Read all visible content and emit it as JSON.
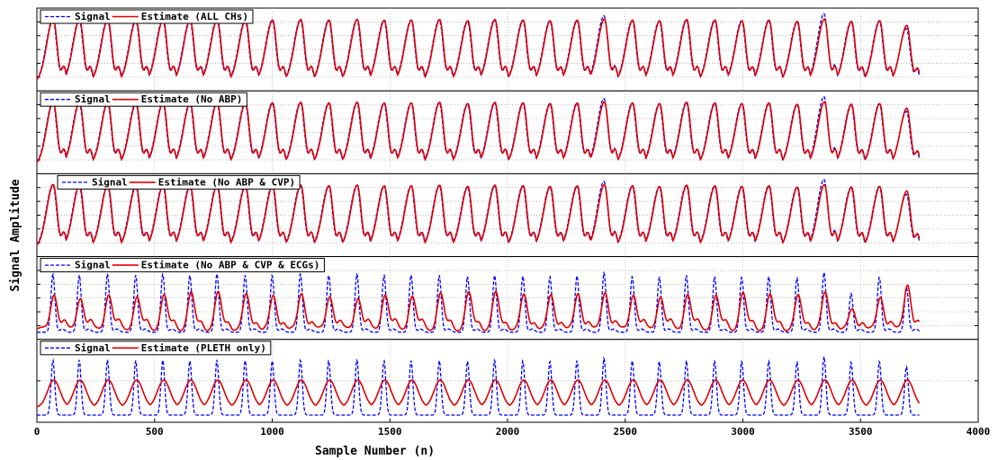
{
  "chart_data": {
    "type": "line",
    "xlabel": "Sample Number (n)",
    "ylabel": "Signal Amplitude",
    "xlim": [
      0,
      4000
    ],
    "xticks": [
      0,
      500,
      1000,
      1500,
      2000,
      2500,
      3000,
      3500,
      4000
    ],
    "grid": true,
    "n_samples": 3750,
    "beat_positions": [
      68,
      180,
      300,
      420,
      535,
      650,
      765,
      885,
      1000,
      1120,
      1240,
      1360,
      1475,
      1590,
      1710,
      1830,
      1945,
      2065,
      2180,
      2295,
      2410,
      2530,
      2645,
      2760,
      2880,
      2995,
      3110,
      3230,
      3345,
      3460,
      3580,
      3695
    ],
    "panels": [
      {
        "legend": {
          "signal": "Signal",
          "estimate": "Estimate (ALL CHs)"
        },
        "estimate_style": "accurate",
        "signal_peaks": [
          1.0,
          0.99,
          0.99,
          0.98,
          0.99,
          0.98,
          0.99,
          0.98,
          0.98,
          0.99,
          0.98,
          0.99,
          0.98,
          0.98,
          0.99,
          0.97,
          0.99,
          0.98,
          0.97,
          0.98,
          1.05,
          0.98,
          0.97,
          0.99,
          0.98,
          0.97,
          0.98,
          0.96,
          1.08,
          0.96,
          0.97,
          0.85
        ],
        "estimate_peaks": [
          1.0,
          0.99,
          0.99,
          0.98,
          0.99,
          0.98,
          0.99,
          0.98,
          0.98,
          0.99,
          0.98,
          0.99,
          0.98,
          0.98,
          0.99,
          0.97,
          0.99,
          0.98,
          0.97,
          0.98,
          1.0,
          0.98,
          0.97,
          0.99,
          0.98,
          0.97,
          0.98,
          0.96,
          1.0,
          0.96,
          0.97,
          0.9
        ]
      },
      {
        "legend": {
          "signal": "Signal",
          "estimate": "Estimate (No ABP)"
        },
        "estimate_style": "accurate",
        "signal_peaks": [
          1.0,
          0.99,
          0.99,
          0.98,
          0.99,
          0.98,
          0.99,
          0.98,
          0.98,
          0.99,
          0.98,
          0.99,
          0.98,
          0.98,
          0.99,
          0.97,
          0.99,
          0.98,
          0.97,
          0.98,
          1.05,
          0.98,
          0.97,
          0.99,
          0.98,
          0.97,
          0.98,
          0.96,
          1.08,
          0.96,
          0.97,
          0.85
        ],
        "estimate_peaks": [
          1.0,
          0.99,
          0.99,
          0.98,
          0.99,
          0.98,
          0.99,
          0.98,
          0.98,
          0.99,
          0.98,
          0.99,
          0.98,
          0.98,
          0.99,
          0.97,
          0.99,
          0.98,
          0.97,
          0.98,
          1.0,
          0.98,
          0.97,
          0.99,
          0.98,
          0.97,
          0.98,
          0.96,
          1.0,
          0.96,
          0.97,
          0.9
        ]
      },
      {
        "legend": {
          "signal": "Signal",
          "estimate": "Estimate (No ABP & CVP)"
        },
        "estimate_style": "accurate",
        "signal_peaks": [
          1.0,
          0.99,
          0.99,
          0.98,
          0.99,
          0.98,
          0.99,
          0.98,
          0.98,
          0.99,
          0.98,
          0.99,
          0.98,
          0.98,
          0.99,
          0.97,
          0.99,
          0.98,
          0.97,
          0.98,
          1.05,
          0.98,
          0.97,
          0.99,
          0.98,
          0.97,
          0.98,
          0.96,
          1.08,
          0.96,
          0.97,
          0.85
        ],
        "estimate_peaks": [
          1.0,
          0.99,
          0.99,
          0.98,
          0.99,
          0.98,
          0.99,
          0.98,
          0.98,
          0.99,
          0.98,
          0.99,
          0.98,
          0.98,
          0.99,
          0.97,
          0.99,
          0.98,
          0.97,
          0.98,
          1.0,
          0.98,
          0.97,
          0.99,
          0.98,
          0.97,
          0.98,
          0.96,
          1.0,
          0.96,
          0.97,
          0.9
        ]
      },
      {
        "legend": {
          "signal": "Signal",
          "estimate": "Estimate (No ABP & CVP & ECGs)"
        },
        "estimate_style": "degraded",
        "signal_peaks": [
          0.9,
          0.88,
          0.9,
          0.88,
          0.9,
          0.88,
          0.9,
          0.88,
          0.88,
          0.9,
          0.88,
          0.9,
          0.88,
          0.88,
          0.88,
          0.86,
          0.88,
          0.87,
          0.86,
          0.87,
          0.92,
          0.86,
          0.85,
          0.88,
          0.86,
          0.85,
          0.86,
          0.84,
          0.92,
          0.6,
          0.85,
          0.7
        ],
        "estimate_peaks": [
          0.55,
          0.5,
          0.55,
          0.5,
          0.52,
          0.55,
          0.55,
          0.52,
          0.5,
          0.55,
          0.52,
          0.5,
          0.55,
          0.52,
          0.55,
          0.55,
          0.55,
          0.52,
          0.52,
          0.55,
          0.58,
          0.55,
          0.52,
          0.55,
          0.52,
          0.55,
          0.52,
          0.5,
          0.55,
          0.3,
          0.5,
          0.7
        ]
      },
      {
        "legend": {
          "signal": "Signal",
          "estimate": "Estimate (PLETH only)"
        },
        "estimate_style": "smooth",
        "signal_peaks": [
          0.85,
          0.85,
          0.85,
          0.84,
          0.85,
          0.84,
          0.85,
          0.84,
          0.84,
          0.85,
          0.84,
          0.85,
          0.84,
          0.84,
          0.84,
          0.83,
          0.85,
          0.84,
          0.83,
          0.84,
          0.88,
          0.84,
          0.83,
          0.84,
          0.84,
          0.83,
          0.84,
          0.82,
          0.9,
          0.82,
          0.83,
          0.75
        ],
        "estimate_peaks": [
          0.42,
          0.42,
          0.42,
          0.42,
          0.42,
          0.42,
          0.42,
          0.42,
          0.42,
          0.42,
          0.42,
          0.42,
          0.42,
          0.42,
          0.42,
          0.42,
          0.42,
          0.42,
          0.42,
          0.42,
          0.42,
          0.42,
          0.42,
          0.42,
          0.42,
          0.42,
          0.42,
          0.42,
          0.42,
          0.42,
          0.42,
          0.42
        ]
      }
    ],
    "colors": {
      "signal": "#0000ff",
      "estimate": "#e00000",
      "grid": "#a0a0a0"
    }
  }
}
